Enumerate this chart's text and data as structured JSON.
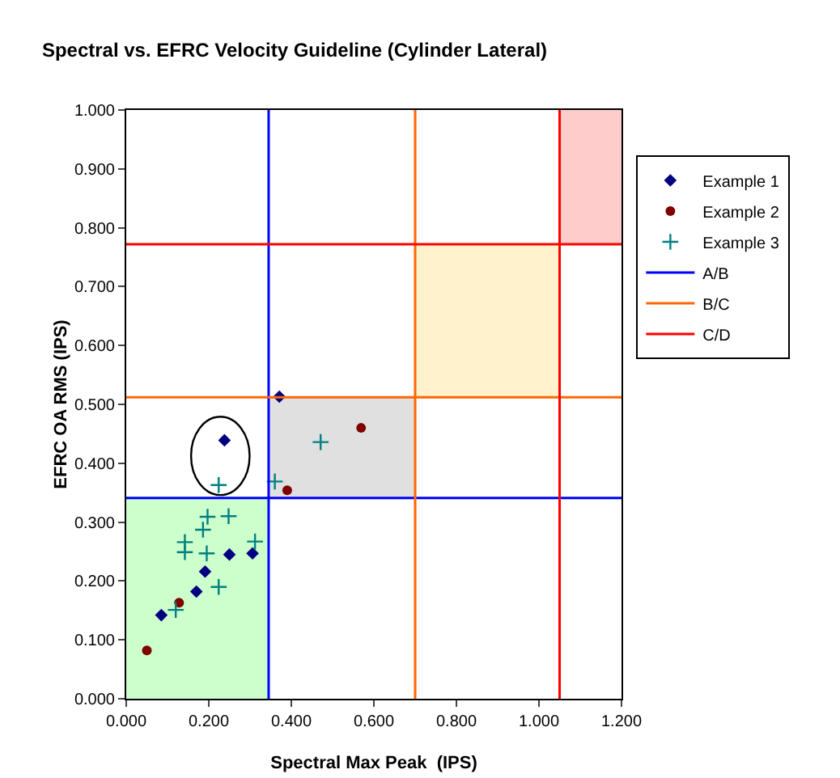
{
  "chart_data": {
    "type": "scatter",
    "title": "Spectral vs. EFRC Velocity Guideline (Cylinder Lateral)",
    "xlabel": "Spectral Max Peak  (IPS)",
    "ylabel": "EFRC OA RMS (IPS)",
    "series": [
      {
        "type": "area",
        "color": "#ccffcc",
        "x": [
          0,
          0.345,
          0.345,
          0
        ],
        "values": [
          0,
          0,
          0.341,
          0.341
        ]
      },
      {
        "type": "area",
        "color": "#e0e0e0",
        "x": [
          0.345,
          0.7,
          0.7,
          0.345
        ],
        "values": [
          0.341,
          0.341,
          0.512,
          0.512
        ]
      },
      {
        "type": "area",
        "color": "#fff2cc",
        "x": [
          0.7,
          1.05,
          1.05,
          0.7
        ],
        "values": [
          0.512,
          0.512,
          0.772,
          0.772
        ]
      },
      {
        "type": "area",
        "color": "#ffcccc",
        "x": [
          1.05,
          1.2,
          1.2,
          1.05
        ],
        "values": [
          0.772,
          0.772,
          1.0,
          1.0
        ]
      },
      {
        "name": "Example 1",
        "color": "#000080",
        "marker": "diamond",
        "x": [
          0.371,
          0.238,
          0.25,
          0.306,
          0.191,
          0.17,
          0.085
        ],
        "values": [
          0.513,
          0.439,
          0.245,
          0.247,
          0.216,
          0.182,
          0.142
        ]
      },
      {
        "name": "Example 2",
        "color": "#800000",
        "marker": "circle",
        "x": [
          0.569,
          0.39,
          0.128,
          0.05
        ],
        "values": [
          0.46,
          0.354,
          0.163,
          0.082
        ]
      },
      {
        "name": "Example 3",
        "color": "#008080",
        "marker": "cross",
        "x": [
          0.471,
          0.36,
          0.224,
          0.197,
          0.248,
          0.186,
          0.142,
          0.142,
          0.195,
          0.312,
          0.224,
          0.12
        ],
        "values": [
          0.436,
          0.369,
          0.363,
          0.309,
          0.31,
          0.287,
          0.266,
          0.249,
          0.247,
          0.267,
          0.19,
          0.151
        ]
      },
      {
        "name": "A/B",
        "type": "line",
        "marker": "none",
        "color": "#0000ff",
        "x": [
          0.345,
          0.345,
          null,
          0,
          1.2
        ],
        "values": [
          0,
          1.0,
          null,
          0.341,
          0.341
        ]
      },
      {
        "name": "B/C",
        "type": "line",
        "marker": "none",
        "color": "#ff6600",
        "x": [
          0.7,
          0.7,
          null,
          0,
          1.2
        ],
        "values": [
          0,
          1.0,
          null,
          0.512,
          0.512
        ]
      },
      {
        "name": "C/D",
        "type": "line",
        "marker": "none",
        "color": "#ff0000",
        "x": [
          1.05,
          1.05,
          null,
          0,
          1.2
        ],
        "values": [
          0,
          1.0,
          null,
          0.772,
          0.772
        ]
      }
    ],
    "xlim": [
      0,
      1.2
    ],
    "xticks": [
      {
        "value": 0,
        "label": "0.000"
      },
      {
        "value": 0.2,
        "label": "0.200"
      },
      {
        "value": 0.4,
        "label": "0.400"
      },
      {
        "value": 0.6,
        "label": "0.600"
      },
      {
        "value": 0.8,
        "label": "0.800"
      },
      {
        "value": 1.0,
        "label": "1.000"
      },
      {
        "value": 1.2,
        "label": "1.200"
      }
    ],
    "ylim": [
      0,
      1.0
    ],
    "yticks": [
      {
        "value": 0,
        "label": "0.000"
      },
      {
        "value": 0.1,
        "label": "0.100"
      },
      {
        "value": 0.2,
        "label": "0.200"
      },
      {
        "value": 0.3,
        "label": "0.300"
      },
      {
        "value": 0.4,
        "label": "0.400"
      },
      {
        "value": 0.5,
        "label": "0.500"
      },
      {
        "value": 0.6,
        "label": "0.600"
      },
      {
        "value": 0.7,
        "label": "0.700"
      },
      {
        "value": 0.8,
        "label": "0.800"
      },
      {
        "value": 0.9,
        "label": "0.900"
      },
      {
        "value": 1.0,
        "label": "1.000"
      }
    ],
    "grid": false,
    "legend": "right"
  }
}
